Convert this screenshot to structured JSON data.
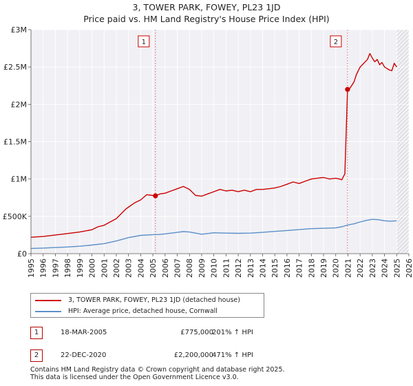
{
  "chart_data": {
    "type": "line",
    "title": "3, TOWER PARK, FOWEY, PL23 1JD",
    "subtitle": "Price paid vs. HM Land Registry's House Price Index (HPI)",
    "xlabel": "",
    "ylabel": "",
    "xlim": [
      1995,
      2026
    ],
    "ylim": [
      0,
      3000000
    ],
    "x_ticks": [
      1995,
      1996,
      1997,
      1998,
      1999,
      2000,
      2001,
      2002,
      2003,
      2004,
      2005,
      2006,
      2007,
      2008,
      2009,
      2010,
      2011,
      2012,
      2013,
      2014,
      2015,
      2016,
      2017,
      2018,
      2019,
      2020,
      2021,
      2022,
      2023,
      2024,
      2025,
      2026
    ],
    "x_tick_labels": [
      "1995",
      "1996",
      "1997",
      "1998",
      "1999",
      "2000",
      "2001",
      "2002",
      "2003",
      "2004",
      "2005",
      "2006",
      "2007",
      "2008",
      "2009",
      "2010",
      "2011",
      "2012",
      "2013",
      "2014",
      "2015",
      "2016",
      "2017",
      "2018",
      "2019",
      "2020",
      "2021",
      "2022",
      "2023",
      "2024",
      "2025",
      "2026"
    ],
    "y_ticks": [
      0,
      500000,
      1000000,
      1500000,
      2000000,
      2500000,
      3000000
    ],
    "y_tick_labels": [
      "£0",
      "£500K",
      "£1M",
      "£1.5M",
      "£2M",
      "£2.5M",
      "£3M"
    ],
    "grid": true,
    "forecast_hatch_start": 2025.0,
    "series": [
      {
        "name": "3, TOWER PARK, FOWEY, PL23 1JD (detached house)",
        "color": "#cc0000",
        "x": [
          1995.0,
          1996.0,
          1997.0,
          1998.0,
          1999.0,
          2000.0,
          2000.5,
          2001.0,
          2002.0,
          2002.8,
          2003.5,
          2004.0,
          2004.5,
          2005.21,
          2005.6,
          2006.0,
          2006.5,
          2007.0,
          2007.5,
          2008.0,
          2008.5,
          2009.0,
          2009.5,
          2010.0,
          2010.5,
          2011.0,
          2011.5,
          2012.0,
          2012.5,
          2013.0,
          2013.5,
          2014.0,
          2014.5,
          2015.0,
          2015.5,
          2016.0,
          2016.5,
          2017.0,
          2017.5,
          2018.0,
          2018.5,
          2019.0,
          2019.5,
          2020.0,
          2020.3,
          2020.5,
          2020.75,
          2020.97,
          2021.1,
          2021.3,
          2021.5,
          2021.7,
          2022.0,
          2022.3,
          2022.6,
          2022.8,
          2023.0,
          2023.2,
          2023.4,
          2023.6,
          2023.8,
          2024.0,
          2024.2,
          2024.4,
          2024.6,
          2024.8,
          2025.0
        ],
        "y": [
          220000,
          230000,
          250000,
          270000,
          290000,
          320000,
          360000,
          380000,
          470000,
          600000,
          680000,
          720000,
          790000,
          775000,
          800000,
          810000,
          840000,
          870000,
          900000,
          860000,
          780000,
          770000,
          800000,
          830000,
          860000,
          840000,
          850000,
          830000,
          850000,
          830000,
          860000,
          860000,
          870000,
          880000,
          900000,
          930000,
          960000,
          940000,
          970000,
          1000000,
          1010000,
          1020000,
          1000000,
          1010000,
          1000000,
          990000,
          1070000,
          2200000,
          2200000,
          2250000,
          2300000,
          2400000,
          2500000,
          2550000,
          2600000,
          2680000,
          2620000,
          2570000,
          2600000,
          2530000,
          2560000,
          2500000,
          2480000,
          2460000,
          2450000,
          2550000,
          2500000
        ]
      },
      {
        "name": "HPI: Average price, detached house, Cornwall",
        "color": "#5b8fc7",
        "x": [
          1995.0,
          1996.0,
          1997.0,
          1998.0,
          1999.0,
          2000.0,
          2001.0,
          2002.0,
          2003.0,
          2004.0,
          2005.0,
          2005.5,
          2006.0,
          2007.0,
          2007.5,
          2008.0,
          2008.5,
          2009.0,
          2009.5,
          2010.0,
          2011.0,
          2012.0,
          2013.0,
          2014.0,
          2015.0,
          2016.0,
          2017.0,
          2018.0,
          2019.0,
          2020.0,
          2020.5,
          2021.0,
          2021.5,
          2022.0,
          2022.5,
          2023.0,
          2023.5,
          2024.0,
          2024.5,
          2025.0
        ],
        "y": [
          70000,
          75000,
          82000,
          90000,
          100000,
          115000,
          135000,
          170000,
          215000,
          245000,
          255000,
          257000,
          265000,
          285000,
          295000,
          290000,
          275000,
          260000,
          270000,
          280000,
          275000,
          272000,
          275000,
          285000,
          298000,
          310000,
          322000,
          335000,
          340000,
          345000,
          360000,
          385000,
          400000,
          425000,
          445000,
          460000,
          455000,
          440000,
          435000,
          440000
        ]
      }
    ],
    "annotations": [
      {
        "label": "1",
        "x": 2005.21,
        "y": 775000
      },
      {
        "label": "2",
        "x": 2020.97,
        "y": 2200000
      }
    ]
  },
  "legend": {
    "items": [
      {
        "label": "3, TOWER PARK, FOWEY, PL23 1JD (detached house)",
        "color": "#cc0000"
      },
      {
        "label": "HPI: Average price, detached house, Cornwall",
        "color": "#5b8fc7"
      }
    ]
  },
  "sales": [
    {
      "num": "1",
      "date": "18-MAR-2005",
      "price": "£775,000",
      "hpi": "201% ↑ HPI"
    },
    {
      "num": "2",
      "date": "22-DEC-2020",
      "price": "£2,200,000",
      "hpi": "471% ↑ HPI"
    }
  ],
  "footer": {
    "line1": "Contains HM Land Registry data © Crown copyright and database right 2025.",
    "line2": "This data is licensed under the Open Government Licence v3.0."
  }
}
